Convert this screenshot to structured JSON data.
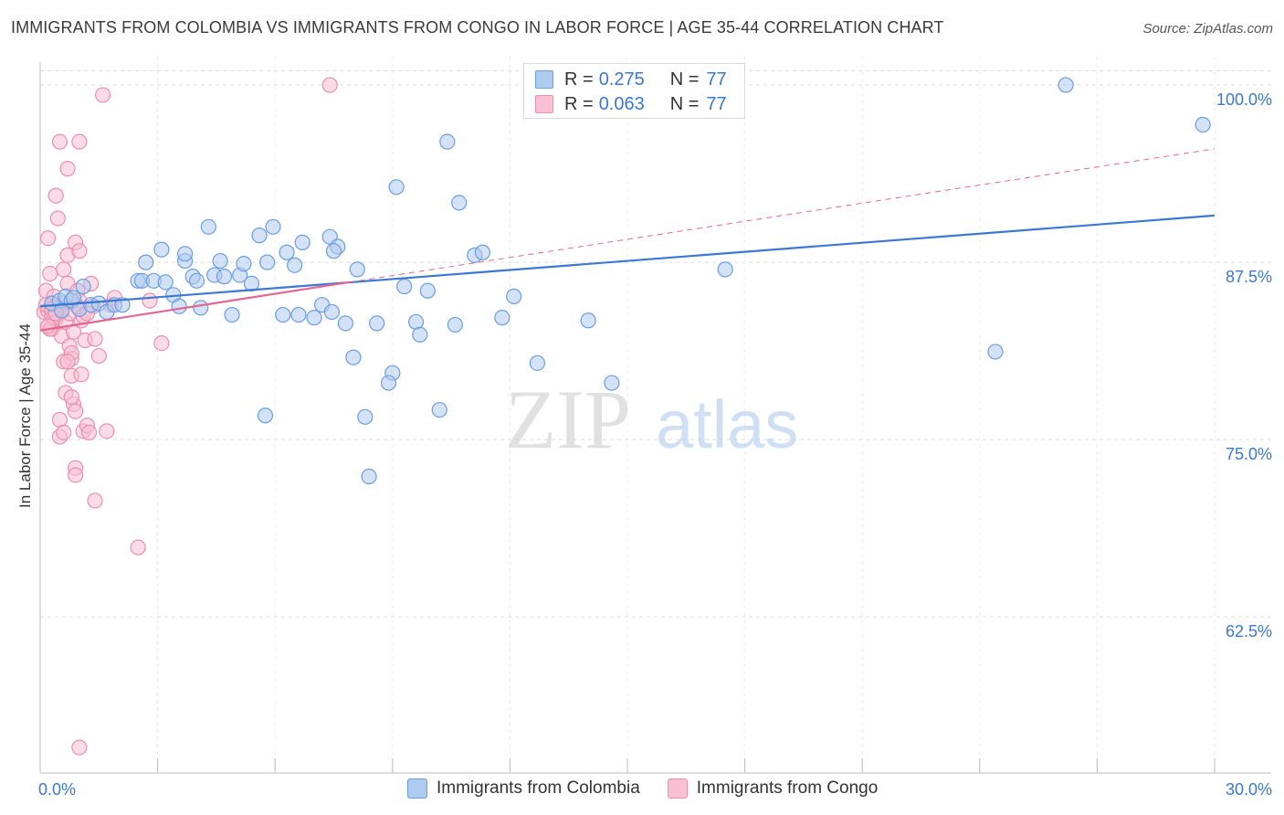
{
  "title": "IMMIGRANTS FROM COLOMBIA VS IMMIGRANTS FROM CONGO IN LABOR FORCE | AGE 35-44 CORRELATION CHART",
  "source": "Source: ZipAtlas.com",
  "watermark": {
    "zip": "ZIP",
    "atlas": "atlas"
  },
  "legend_top": [
    {
      "r_label": "R =",
      "r_value": "0.275",
      "n_label": "N =",
      "n_value": "77"
    },
    {
      "r_label": "R =",
      "r_value": "0.063",
      "n_label": "N =",
      "n_value": "77"
    }
  ],
  "legend_bottom": [
    {
      "label": "Immigrants from Colombia"
    },
    {
      "label": "Immigrants from Congo"
    }
  ],
  "colors": {
    "colombia_fill": "#aecbf0",
    "colombia_stroke": "#6b9ee0",
    "colombia_line": "#3a78d4",
    "congo_fill": "#f8c0d2",
    "congo_stroke": "#ec8fae",
    "congo_line": "#e46690",
    "axis_label": "#3a78d4",
    "grid": "#dddddd"
  },
  "chart_data": {
    "type": "scatter",
    "title": "IMMIGRANTS FROM COLOMBIA VS IMMIGRANTS FROM CONGO IN LABOR FORCE | AGE 35-44 CORRELATION CHART",
    "xlabel": "",
    "ylabel": "In Labor Force | Age 35-44",
    "xlim": [
      0,
      30
    ],
    "ylim": [
      51.5,
      102
    ],
    "x_tick_labels": [
      "0.0%",
      "30.0%"
    ],
    "y_ticks": [
      62.5,
      75.0,
      87.5,
      100.0
    ],
    "y_tick_labels": [
      "62.5%",
      "75.0%",
      "87.5%",
      "100.0%"
    ],
    "grid": true,
    "series": [
      {
        "name": "Immigrants from Colombia",
        "r": 0.275,
        "n": 77,
        "trend": {
          "x": [
            0,
            30
          ],
          "y": [
            84.4,
            90.8
          ]
        },
        "x": [
          0.3,
          0.5,
          0.55,
          0.65,
          0.8,
          0.85,
          1.0,
          1.1,
          1.3,
          1.5,
          1.7,
          1.9,
          2.1,
          2.5,
          2.6,
          2.7,
          2.9,
          3.1,
          3.2,
          3.4,
          3.55,
          3.7,
          3.9,
          4.0,
          4.1,
          4.3,
          4.45,
          4.6,
          4.7,
          4.9,
          5.1,
          5.2,
          5.4,
          5.6,
          5.8,
          5.95,
          6.2,
          6.3,
          6.6,
          6.7,
          7.0,
          7.2,
          7.4,
          7.45,
          7.6,
          7.8,
          8.0,
          8.1,
          8.3,
          8.4,
          8.6,
          9.0,
          9.1,
          9.3,
          9.6,
          9.7,
          9.9,
          10.2,
          10.4,
          10.6,
          10.7,
          11.1,
          11.8,
          12.7,
          14.0,
          17.5,
          24.4,
          26.2,
          29.7,
          5.75,
          7.5,
          11.3,
          8.9,
          6.5,
          3.7,
          12.1,
          14.6
        ],
        "y": [
          84.6,
          84.8,
          84.1,
          85.1,
          84.8,
          85.0,
          84.2,
          85.8,
          84.5,
          84.6,
          84.0,
          84.5,
          84.5,
          86.2,
          86.2,
          87.5,
          86.2,
          88.4,
          86.1,
          85.2,
          84.4,
          87.6,
          86.5,
          86.2,
          84.3,
          90.0,
          86.6,
          87.6,
          86.5,
          83.8,
          86.6,
          87.4,
          86.0,
          89.4,
          87.5,
          90.0,
          83.8,
          88.2,
          83.8,
          88.9,
          83.6,
          84.5,
          89.3,
          84.0,
          88.6,
          83.2,
          80.8,
          87.0,
          76.6,
          72.4,
          83.2,
          79.7,
          92.8,
          85.8,
          83.3,
          82.4,
          85.5,
          77.1,
          96.0,
          83.1,
          91.7,
          88.0,
          83.6,
          80.4,
          83.4,
          87.0,
          81.2,
          100.0,
          97.2,
          76.7,
          88.3,
          88.2,
          79.0,
          87.3,
          88.1,
          85.1,
          79.0
        ]
      },
      {
        "name": "Immigrants from Congo",
        "r": 0.063,
        "n": 77,
        "trend": {
          "x": [
            0,
            7.9
          ],
          "y": [
            82.7,
            86.1
          ]
        },
        "trend_dashed": {
          "x": [
            7.9,
            30
          ],
          "y": [
            86.1,
            95.5
          ]
        },
        "x": [
          0.1,
          0.15,
          0.2,
          0.2,
          0.25,
          0.25,
          0.3,
          0.3,
          0.35,
          0.35,
          0.4,
          0.4,
          0.45,
          0.5,
          0.5,
          0.55,
          0.6,
          0.6,
          0.65,
          0.7,
          0.7,
          0.75,
          0.8,
          0.8,
          0.85,
          0.9,
          0.9,
          0.95,
          1.0,
          1.0,
          1.05,
          1.1,
          1.2,
          1.25,
          1.3,
          1.35,
          1.4,
          1.5,
          1.6,
          1.7,
          1.8,
          1.9,
          2.5,
          2.8,
          3.1,
          7.4,
          0.2,
          0.3,
          0.45,
          0.55,
          0.65,
          0.75,
          0.85,
          0.95,
          1.05,
          1.15,
          0.15,
          0.25,
          0.35,
          0.5,
          0.6,
          0.7,
          0.8,
          0.9,
          1.0,
          1.1,
          0.3,
          0.4,
          0.5,
          0.6,
          0.7,
          0.8,
          0.9,
          1.0,
          1.2,
          1.4,
          0.2
        ],
        "y": [
          84.0,
          85.5,
          83.0,
          89.2,
          84.3,
          86.7,
          82.8,
          84.6,
          84.0,
          85.1,
          83.5,
          92.2,
          90.6,
          96.0,
          84.3,
          82.3,
          87.0,
          84.6,
          78.3,
          88.0,
          86.0,
          81.6,
          80.7,
          79.5,
          77.5,
          73.0,
          72.5,
          85.5,
          84.8,
          96.0,
          79.6,
          75.6,
          76.0,
          75.5,
          86.0,
          84.4,
          70.7,
          80.9,
          99.3,
          75.6,
          84.5,
          85.0,
          67.4,
          84.8,
          81.8,
          100.0,
          84.1,
          83.7,
          84.2,
          84.0,
          83.3,
          83.9,
          82.6,
          84.4,
          83.4,
          82.0,
          84.5,
          82.8,
          83.6,
          75.2,
          80.5,
          94.1,
          81.1,
          88.9,
          88.3,
          83.7,
          84.2,
          83.9,
          76.4,
          75.5,
          80.5,
          78.0,
          77.0,
          53.3,
          83.9,
          82.1,
          83.0
        ]
      }
    ]
  }
}
